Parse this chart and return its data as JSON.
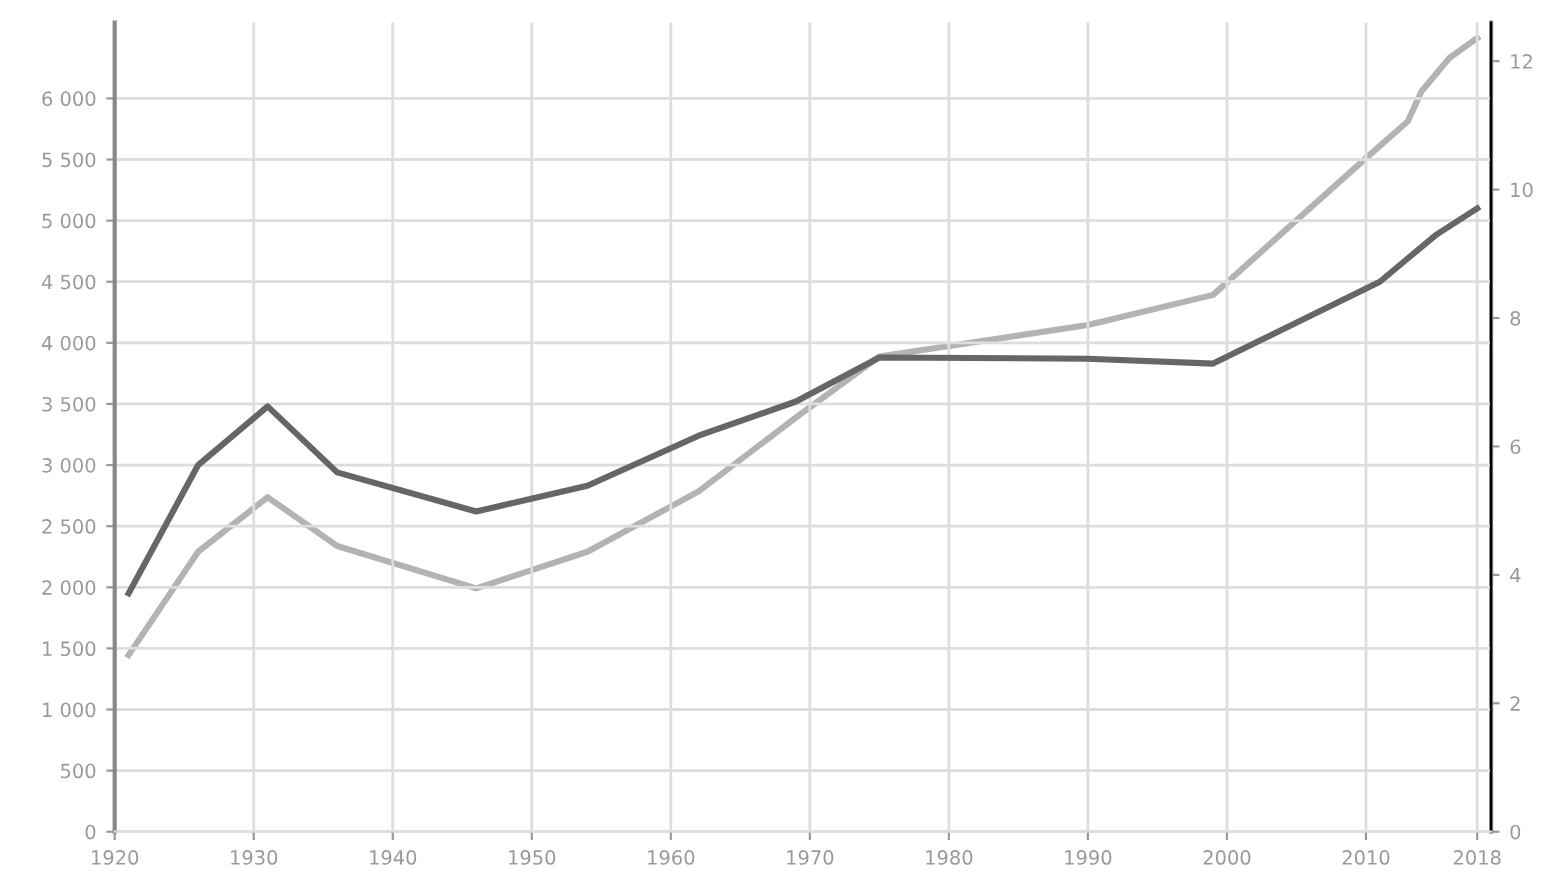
{
  "chart_data": {
    "type": "line",
    "xlim": [
      1920,
      2019
    ],
    "xticks": [
      1920,
      1930,
      1940,
      1950,
      1960,
      1970,
      1980,
      1990,
      2000,
      2010,
      2018
    ],
    "ylim": [
      0,
      6620
    ],
    "yticks": [
      {
        "value": 0,
        "label": "0"
      },
      {
        "value": 500,
        "label": "500"
      },
      {
        "value": 1000,
        "label": "1 000"
      },
      {
        "value": 1500,
        "label": "1 500"
      },
      {
        "value": 2000,
        "label": "2 000"
      },
      {
        "value": 2500,
        "label": "2 500"
      },
      {
        "value": 3000,
        "label": "3 000"
      },
      {
        "value": 3500,
        "label": "3 500"
      },
      {
        "value": 4000,
        "label": "4 000"
      },
      {
        "value": 4500,
        "label": "4 500"
      },
      {
        "value": 5000,
        "label": "5 000"
      },
      {
        "value": 5500,
        "label": "5 500"
      },
      {
        "value": 6000,
        "label": "6 000"
      }
    ],
    "y2lim": [
      0,
      12.6
    ],
    "y2ticks": [
      0,
      2,
      4,
      6,
      8,
      10,
      12
    ],
    "grid": true,
    "marker": "none",
    "line_style": "solid",
    "series": [
      {
        "color": "#b3b3b3",
        "axis": "y2",
        "x": [
          1921,
          1926,
          1931,
          1936,
          1946,
          1954,
          1962,
          1969,
          1975,
          1990,
          1999,
          2010,
          2013,
          2014,
          2016,
          2018
        ],
        "values": [
          2.75,
          4.36,
          5.21,
          4.45,
          3.79,
          4.36,
          5.3,
          6.45,
          7.4,
          7.89,
          8.36,
          10.49,
          11.06,
          11.53,
          12.05,
          12.36
        ]
      },
      {
        "color": "#666666",
        "axis": "y",
        "x": [
          1921,
          1926,
          1931,
          1936,
          1946,
          1954,
          1962,
          1969,
          1975,
          1990,
          1999,
          2011,
          2013,
          2015,
          2018
        ],
        "values": [
          1950,
          3000,
          3480,
          2940,
          2620,
          2830,
          3240,
          3520,
          3880,
          3870,
          3830,
          4500,
          4690,
          4880,
          5100
        ]
      }
    ]
  }
}
